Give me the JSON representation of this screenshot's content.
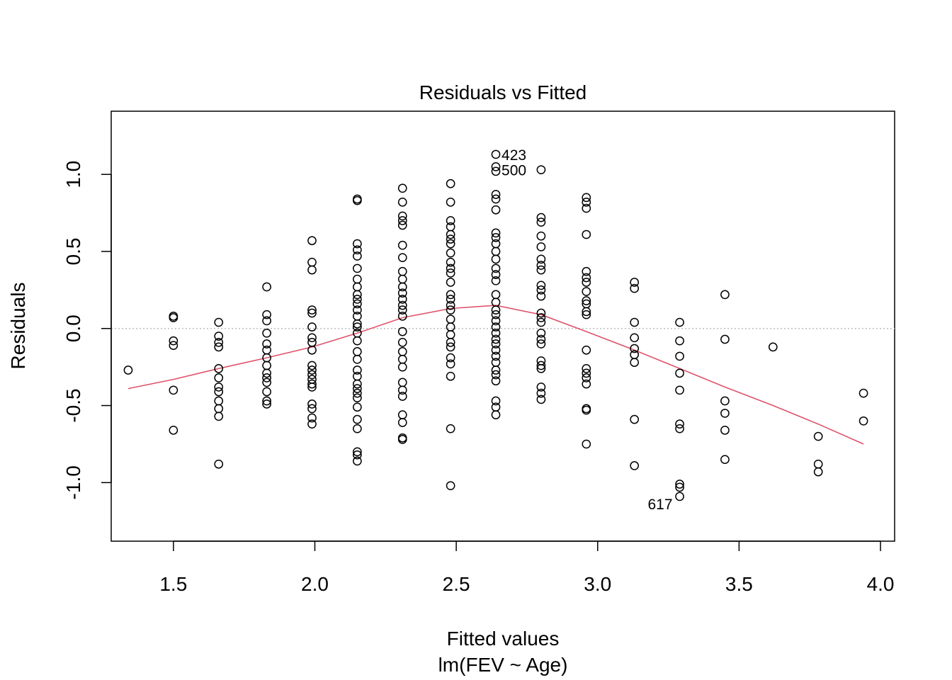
{
  "chart_data": {
    "type": "scatter",
    "title": "Residuals vs Fitted",
    "xlabel": "Fitted values",
    "xsublabel": "lm(FEV ~ Age)",
    "ylabel": "Residuals",
    "xlim": [
      1.28,
      4.05
    ],
    "ylim": [
      -1.38,
      1.41
    ],
    "xticks": [
      "1.5",
      "2.0",
      "2.5",
      "3.0",
      "3.5",
      "4.0"
    ],
    "yticks": [
      "-1.0",
      "-0.5",
      "0.0",
      "0.5",
      "1.0"
    ],
    "reference_line_y": 0,
    "point_style": "open-circle",
    "smooth_color": "#DF536B",
    "groups": [
      {
        "x": 1.34,
        "y": [
          -0.27
        ]
      },
      {
        "x": 1.5,
        "y": [
          0.08,
          0.07,
          -0.08,
          -0.11,
          -0.4,
          -0.66
        ]
      },
      {
        "x": 1.66,
        "y": [
          0.04,
          -0.05,
          -0.09,
          -0.12,
          -0.26,
          -0.32,
          -0.38,
          -0.41,
          -0.47,
          -0.52,
          -0.57,
          -0.88
        ]
      },
      {
        "x": 1.83,
        "y": [
          0.27,
          0.09,
          0.05,
          -0.03,
          -0.1,
          -0.14,
          -0.19,
          -0.24,
          -0.29,
          -0.32,
          -0.35,
          -0.41,
          -0.47,
          -0.49
        ]
      },
      {
        "x": 1.99,
        "y": [
          0.57,
          0.43,
          0.38,
          0.12,
          0.1,
          0.01,
          -0.06,
          -0.09,
          -0.14,
          -0.24,
          -0.27,
          -0.3,
          -0.33,
          -0.36,
          -0.38,
          -0.49,
          -0.52,
          -0.58,
          -0.62
        ]
      },
      {
        "x": 2.15,
        "y": [
          0.84,
          0.83,
          0.55,
          0.51,
          0.47,
          0.39,
          0.32,
          0.27,
          0.22,
          0.19,
          0.16,
          0.12,
          0.08,
          0.03,
          0.01,
          -0.03,
          -0.08,
          -0.15,
          -0.2,
          -0.27,
          -0.31,
          -0.36,
          -0.39,
          -0.42,
          -0.45,
          -0.51,
          -0.59,
          -0.65,
          -0.8,
          -0.82,
          -0.86
        ]
      },
      {
        "x": 2.31,
        "y": [
          0.91,
          0.82,
          0.73,
          0.7,
          0.67,
          0.54,
          0.46,
          0.37,
          0.32,
          0.27,
          0.23,
          0.19,
          0.15,
          0.12,
          0.08,
          -0.02,
          -0.09,
          -0.15,
          -0.2,
          -0.25,
          -0.35,
          -0.4,
          -0.44,
          -0.56,
          -0.61,
          -0.71,
          -0.72
        ]
      },
      {
        "x": 2.48,
        "y": [
          0.94,
          0.82,
          0.7,
          0.66,
          0.61,
          0.58,
          0.55,
          0.49,
          0.43,
          0.39,
          0.36,
          0.3,
          0.22,
          0.19,
          0.15,
          0.12,
          0.06,
          0.01,
          -0.04,
          -0.09,
          -0.12,
          -0.19,
          -0.23,
          -0.31,
          -0.65,
          -1.02
        ]
      },
      {
        "x": 2.64,
        "y": [
          1.13,
          1.05,
          1.02,
          0.87,
          0.84,
          0.77,
          0.62,
          0.59,
          0.55,
          0.5,
          0.45,
          0.39,
          0.35,
          0.31,
          0.22,
          0.17,
          0.12,
          0.09,
          0.05,
          0.01,
          -0.03,
          -0.07,
          -0.1,
          -0.14,
          -0.18,
          -0.22,
          -0.27,
          -0.3,
          -0.34,
          -0.47,
          -0.51,
          -0.56
        ]
      },
      {
        "x": 2.8,
        "y": [
          1.03,
          0.72,
          0.69,
          0.6,
          0.53,
          0.45,
          0.41,
          0.38,
          0.28,
          0.25,
          0.21,
          0.1,
          0.07,
          0.04,
          -0.03,
          -0.07,
          -0.1,
          -0.21,
          -0.24,
          -0.26,
          -0.38,
          -0.42,
          -0.46
        ]
      },
      {
        "x": 2.96,
        "y": [
          0.85,
          0.82,
          0.78,
          0.61,
          0.37,
          0.33,
          0.3,
          0.24,
          0.18,
          0.16,
          0.11,
          0.09,
          -0.14,
          -0.26,
          -0.29,
          -0.32,
          -0.36,
          -0.52,
          -0.53,
          -0.75
        ]
      },
      {
        "x": 3.13,
        "y": [
          0.3,
          0.26,
          0.04,
          -0.06,
          -0.13,
          -0.17,
          -0.22,
          -0.59,
          -0.89
        ]
      },
      {
        "x": 3.29,
        "y": [
          0.04,
          -0.08,
          -0.18,
          -0.29,
          -0.4,
          -0.62,
          -0.65,
          -1.01,
          -1.03,
          -1.09
        ]
      },
      {
        "x": 3.45,
        "y": [
          0.22,
          -0.07,
          -0.47,
          -0.55,
          -0.66,
          -0.85
        ]
      },
      {
        "x": 3.62,
        "y": [
          -0.12
        ]
      },
      {
        "x": 3.78,
        "y": [
          -0.7,
          -0.88,
          -0.93
        ]
      },
      {
        "x": 3.94,
        "y": [
          -0.42,
          -0.6
        ]
      }
    ],
    "smooth_line": {
      "x": [
        1.34,
        1.5,
        1.66,
        1.83,
        1.99,
        2.15,
        2.31,
        2.48,
        2.64,
        2.8,
        2.96,
        3.13,
        3.29,
        3.45,
        3.62,
        3.78,
        3.94
      ],
      "y": [
        -0.39,
        -0.33,
        -0.26,
        -0.19,
        -0.12,
        -0.03,
        0.07,
        0.13,
        0.15,
        0.09,
        -0.02,
        -0.14,
        -0.26,
        -0.38,
        -0.5,
        -0.62,
        -0.75
      ]
    },
    "annotations": [
      {
        "label": "423",
        "x": 2.64,
        "y": 1.13,
        "side": "right"
      },
      {
        "label": "500",
        "x": 2.64,
        "y": 1.03,
        "side": "right"
      },
      {
        "label": "617",
        "x": 3.29,
        "y": -1.09,
        "side": "left"
      }
    ]
  }
}
